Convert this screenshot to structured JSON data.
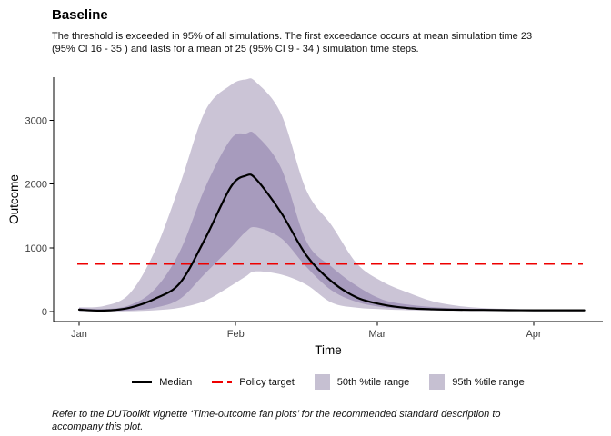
{
  "header": {
    "title": "Baseline",
    "subtitle_lines": [
      "The threshold is exceeded in 95% of all simulations. The first exceedance occurs at mean simulation time 23",
      "(95% CI 16 - 35 ) and lasts for a mean of 25 (95% CI 9 - 34 ) simulation time steps."
    ]
  },
  "chart_data": {
    "type": "area",
    "title": "Baseline",
    "xlabel": "Time",
    "ylabel": "Outcome",
    "x_unit": "days since Jan 1",
    "x_ticks": [
      {
        "day": 0,
        "label": "Jan"
      },
      {
        "day": 31,
        "label": "Feb"
      },
      {
        "day": 59,
        "label": "Mar"
      },
      {
        "day": 90,
        "label": "Apr"
      }
    ],
    "y_ticks": [
      0,
      1000,
      2000,
      3000
    ],
    "ylim": [
      0,
      3700
    ],
    "xlim": [
      0,
      100
    ],
    "grid": "off",
    "legend_position": "bottom",
    "policy_target": 750,
    "x": [
      0,
      5,
      10,
      15,
      20,
      25,
      30,
      33,
      35,
      40,
      45,
      50,
      55,
      60,
      65,
      70,
      75,
      80,
      85,
      90,
      95,
      100
    ],
    "series": [
      {
        "name": "median",
        "values": [
          30,
          15,
          60,
          200,
          450,
          1150,
          1950,
          2130,
          2080,
          1550,
          880,
          470,
          220,
          110,
          55,
          35,
          28,
          25,
          22,
          20,
          20,
          20
        ]
      },
      {
        "name": "p25",
        "values": [
          15,
          8,
          18,
          60,
          200,
          600,
          1000,
          1250,
          1320,
          1150,
          700,
          330,
          150,
          70,
          42,
          28,
          20,
          16,
          13,
          11,
          9,
          8
        ]
      },
      {
        "name": "p75",
        "values": [
          55,
          40,
          100,
          350,
          950,
          1950,
          2700,
          2790,
          2770,
          2250,
          1100,
          700,
          400,
          190,
          110,
          70,
          48,
          38,
          32,
          28,
          26,
          24
        ]
      },
      {
        "name": "p2_5",
        "values": [
          6,
          3,
          6,
          20,
          60,
          170,
          400,
          550,
          630,
          580,
          420,
          140,
          60,
          35,
          22,
          15,
          11,
          8,
          7,
          6,
          5,
          4
        ]
      },
      {
        "name": "p97_5",
        "values": [
          65,
          90,
          280,
          950,
          2000,
          3150,
          3550,
          3640,
          3600,
          3100,
          1900,
          1350,
          750,
          470,
          300,
          160,
          90,
          55,
          42,
          35,
          30,
          26
        ]
      }
    ],
    "colors": {
      "median": "#000000",
      "policy_target": "#ee0000",
      "band_50": "#a79bbd",
      "band_95": "#cbc4d6",
      "tick_text": "#404040"
    }
  },
  "legend": {
    "items": [
      {
        "label": "Median",
        "swatch": "black-line"
      },
      {
        "label": "Policy target",
        "swatch": "red-dashed-line"
      },
      {
        "label": "50th %tile range",
        "swatch": "purple-box"
      },
      {
        "label": "95th %tile range",
        "swatch": "purple-box"
      }
    ]
  },
  "footer": {
    "lines": [
      "Refer to the DUToolkit vignette ‘Time-outcome fan plots’ for the recommended standard description to",
      "accompany this plot."
    ]
  }
}
